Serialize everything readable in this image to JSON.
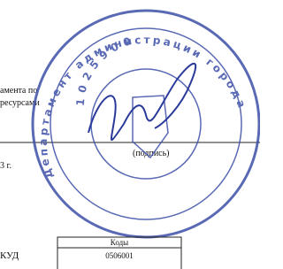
{
  "document": {
    "lines": [
      "аментa по",
      "ресурсами",
      "(подпись)",
      "3 г.",
      "КУД"
    ],
    "codes_table": {
      "header": "Коды",
      "value": "0506001"
    },
    "stamp": {
      "outer_text": "Департамент администрации города",
      "number": "1025900"
    }
  }
}
